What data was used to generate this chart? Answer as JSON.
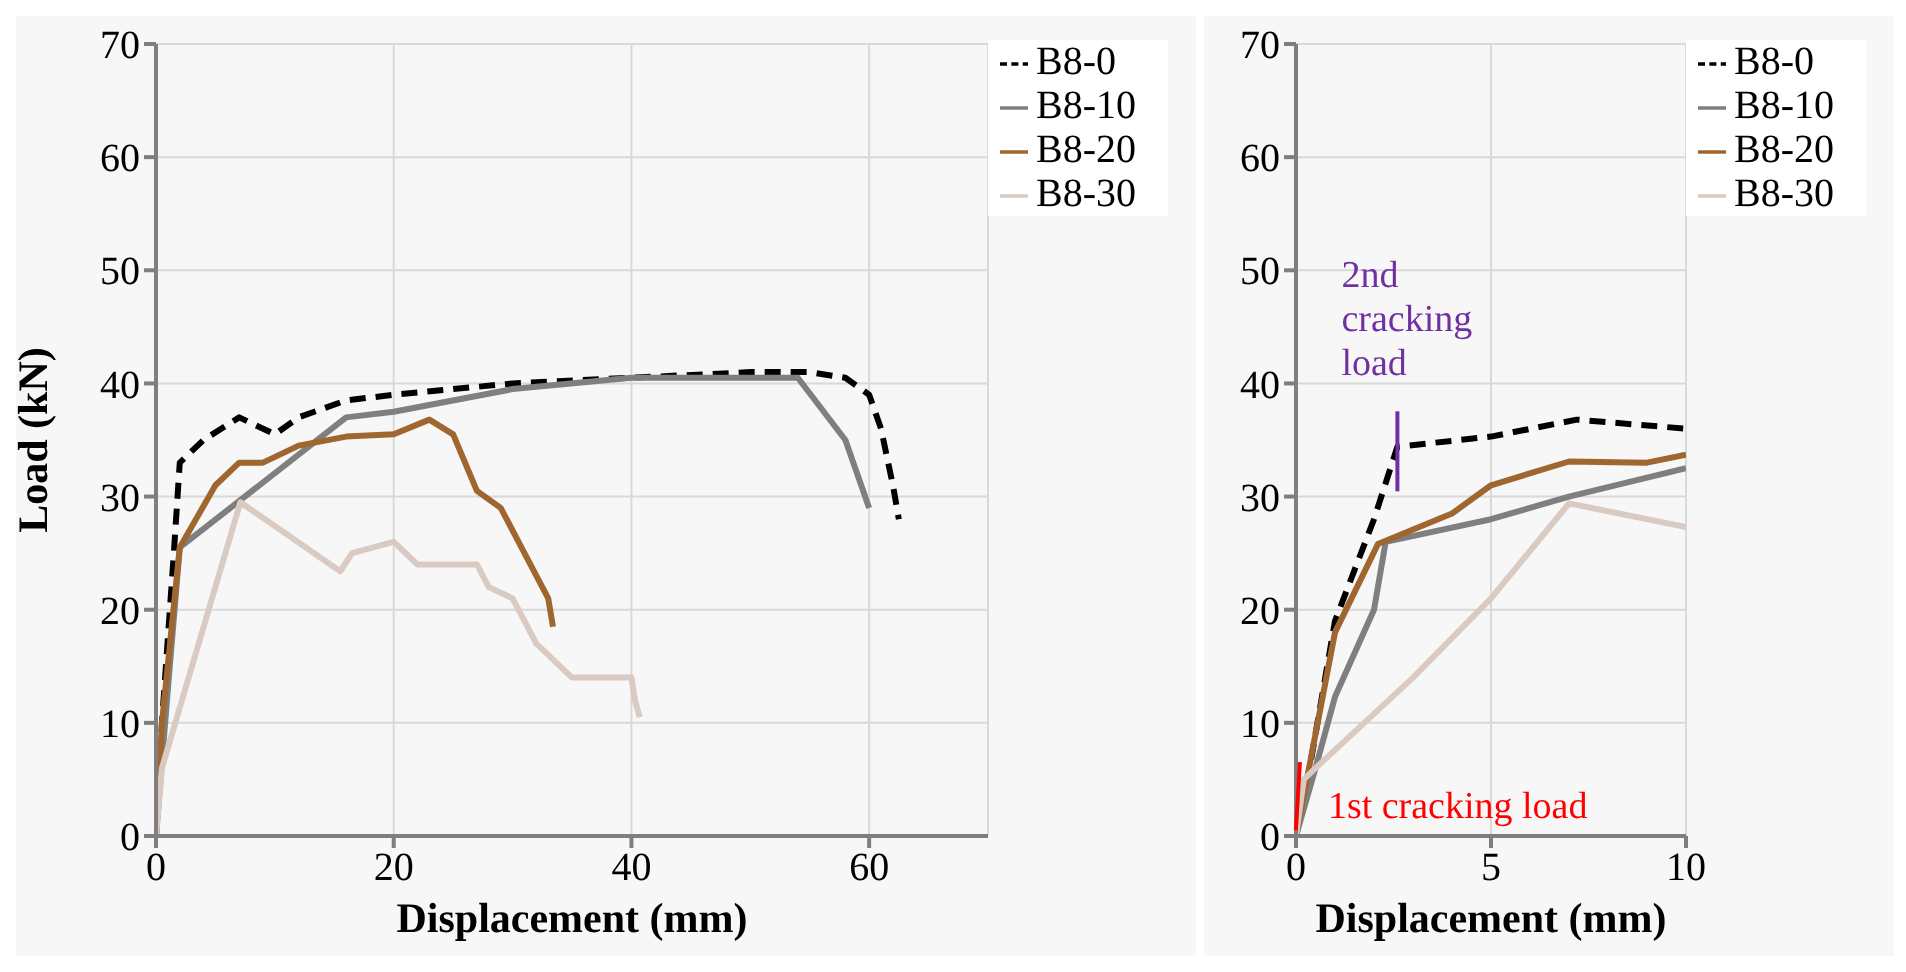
{
  "chart_data": [
    {
      "type": "line",
      "xlabel": "Displacement (mm)",
      "ylabel": "Load (kN)",
      "xlim": [
        0,
        70
      ],
      "xticks": [
        0,
        20,
        40,
        60
      ],
      "ylim": [
        0,
        70
      ],
      "yticks": [
        0,
        10,
        20,
        30,
        40,
        50,
        60,
        70
      ],
      "grid": true,
      "legend": "top right",
      "marker": "none",
      "series": [
        {
          "name": "B8-0",
          "color": "#000000",
          "line_style": "dashed",
          "x": [
            0,
            0.5,
            1.5,
            2,
            4,
            7,
            10,
            12,
            16,
            20,
            30,
            40,
            50,
            55,
            58,
            60,
            61,
            62,
            62.5
          ],
          "values": [
            0,
            10,
            25,
            33,
            35,
            37,
            35.5,
            37,
            38.5,
            39,
            40,
            40.5,
            41,
            41,
            40.5,
            39,
            36,
            31,
            28
          ]
        },
        {
          "name": "B8-10",
          "color": "#7f7f7f",
          "line_style": "solid",
          "x": [
            0,
            1,
            2,
            16,
            20,
            30,
            40,
            54,
            58,
            60
          ],
          "values": [
            0,
            13,
            25.5,
            37,
            37.5,
            39.5,
            40.5,
            40.5,
            35,
            29
          ]
        },
        {
          "name": "B8-20",
          "color": "#a0662f",
          "line_style": "solid",
          "x": [
            0,
            0.5,
            2,
            5,
            7,
            9,
            12,
            16,
            20,
            23,
            25,
            27,
            29,
            31,
            33,
            33.4
          ],
          "values": [
            0,
            10,
            25.5,
            31,
            33,
            33,
            34.5,
            35.3,
            35.5,
            36.8,
            35.5,
            30.5,
            29,
            25,
            21,
            18.5
          ]
        },
        {
          "name": "B8-30",
          "color": "#d9cbc1",
          "line_style": "solid",
          "x": [
            0,
            0.5,
            7.1,
            15.5,
            16.5,
            20,
            22,
            27,
            28,
            30,
            32,
            35,
            40,
            40.3,
            40.7
          ],
          "values": [
            0,
            6,
            29.5,
            23.4,
            25,
            26,
            24,
            24,
            22,
            21,
            17,
            14,
            14,
            12,
            10.5
          ]
        }
      ]
    },
    {
      "type": "line",
      "xlabel": "Displacement (mm)",
      "xlim": [
        0,
        10
      ],
      "xticks": [
        0,
        5,
        10
      ],
      "ylim": [
        0,
        70
      ],
      "yticks": [
        0,
        10,
        20,
        30,
        40,
        50,
        60,
        70
      ],
      "grid": true,
      "legend": "top right",
      "marker": "none",
      "annotations": [
        {
          "text": "2nd cracking load",
          "x": 2.6,
          "y": 34
        },
        {
          "text": "1st cracking load",
          "x": 0.1,
          "y": 3
        }
      ],
      "series": [
        {
          "name": "B8-0",
          "color": "#000000",
          "line_style": "dashed",
          "x": [
            0,
            0.3,
            1,
            2,
            2.6,
            5,
            7.2,
            10
          ],
          "values": [
            0,
            5,
            19,
            28,
            34.4,
            35.3,
            36.8,
            36
          ]
        },
        {
          "name": "B8-10",
          "color": "#7f7f7f",
          "line_style": "solid",
          "x": [
            0,
            0.5,
            1,
            2,
            2.3,
            5,
            7,
            10
          ],
          "values": [
            0,
            6,
            12.3,
            20,
            26,
            28,
            30,
            32.5
          ]
        },
        {
          "name": "B8-20",
          "color": "#a0662f",
          "line_style": "solid",
          "x": [
            0,
            0.5,
            1,
            2.1,
            4,
            5,
            7,
            9,
            10
          ],
          "values": [
            0,
            9,
            18,
            25.8,
            28.5,
            31,
            33.1,
            33,
            33.7
          ]
        },
        {
          "name": "B8-30",
          "color": "#d9cbc1",
          "line_style": "solid",
          "x": [
            0,
            0.2,
            0.5,
            3,
            5,
            7,
            10
          ],
          "values": [
            0,
            5,
            6,
            14,
            21,
            29.4,
            27.3
          ]
        }
      ]
    }
  ]
}
